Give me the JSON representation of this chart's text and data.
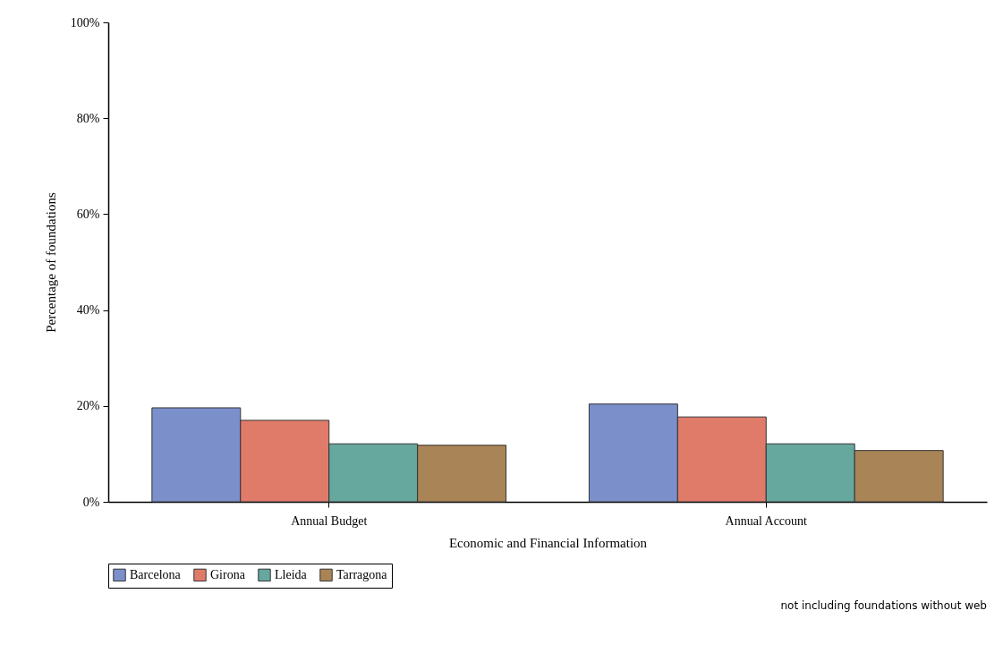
{
  "chart_data": {
    "type": "bar",
    "xlabel": "Economic and Financial Information",
    "ylabel": "Percentage of foundations",
    "categories": [
      "Annual Budget",
      "Annual Account"
    ],
    "series": [
      {
        "name": "Barcelona",
        "color": "#7b8fcb",
        "values": [
          19.6,
          20.4
        ]
      },
      {
        "name": "Girona",
        "color": "#e07b6a",
        "values": [
          17.0,
          17.7
        ]
      },
      {
        "name": "Lleida",
        "color": "#66a79e",
        "values": [
          12.1,
          12.1
        ]
      },
      {
        "name": "Tarragona",
        "color": "#a98456",
        "values": [
          11.8,
          10.7
        ]
      }
    ],
    "ylim": [
      0,
      100
    ],
    "yticks": [
      {
        "value": 0,
        "label": "0%"
      },
      {
        "value": 20,
        "label": "20%"
      },
      {
        "value": 40,
        "label": "40%"
      },
      {
        "value": 60,
        "label": "60%"
      },
      {
        "value": 80,
        "label": "80%"
      },
      {
        "value": 100,
        "label": "100%"
      }
    ],
    "grid": false,
    "legend": "bottom",
    "annotations": [
      "not including foundations without web"
    ]
  }
}
